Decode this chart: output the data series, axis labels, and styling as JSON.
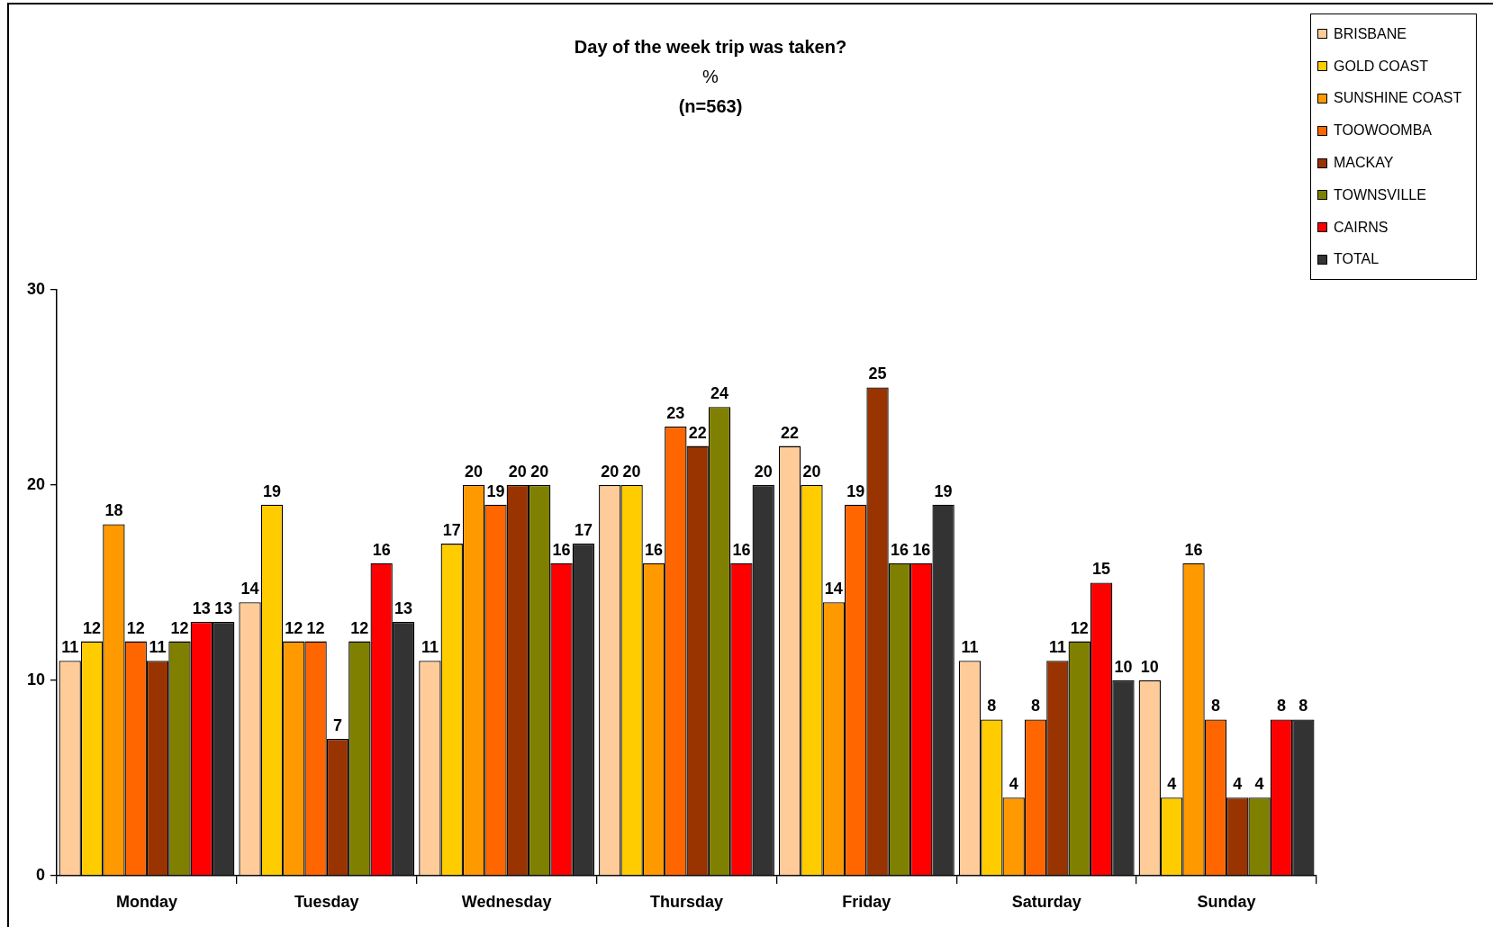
{
  "chart_data": {
    "type": "bar",
    "title": "Day of the week trip was taken?",
    "subtitle": "%",
    "annotations": [
      "(n=563)"
    ],
    "categories": [
      "Monday",
      "Tuesday",
      "Wednesday",
      "Thursday",
      "Friday",
      "Saturday",
      "Sunday"
    ],
    "series": [
      {
        "name": "BRISBANE",
        "color": "#ffcc99",
        "values": [
          11,
          14,
          11,
          20,
          22,
          11,
          10
        ]
      },
      {
        "name": "GOLD COAST",
        "color": "#ffcc00",
        "values": [
          12,
          19,
          17,
          20,
          20,
          8,
          4
        ]
      },
      {
        "name": "SUNSHINE COAST",
        "color": "#ff9900",
        "values": [
          18,
          12,
          20,
          16,
          14,
          4,
          16
        ]
      },
      {
        "name": "TOOWOOMBA",
        "color": "#ff6600",
        "values": [
          12,
          12,
          19,
          23,
          19,
          8,
          8
        ]
      },
      {
        "name": "MACKAY",
        "color": "#993300",
        "values": [
          11,
          7,
          20,
          22,
          25,
          11,
          4
        ]
      },
      {
        "name": "TOWNSVILLE",
        "color": "#808000",
        "values": [
          12,
          12,
          20,
          24,
          16,
          12,
          4
        ]
      },
      {
        "name": "CAIRNS",
        "color": "#ff0000",
        "values": [
          13,
          16,
          16,
          16,
          16,
          15,
          8
        ]
      },
      {
        "name": "TOTAL",
        "color": "#333333",
        "values": [
          13,
          13,
          17,
          20,
          19,
          10,
          8
        ]
      }
    ],
    "ylim": [
      0,
      30
    ],
    "yticks": [
      0,
      10,
      20,
      30
    ],
    "data_labels": true,
    "legend": "top right"
  }
}
